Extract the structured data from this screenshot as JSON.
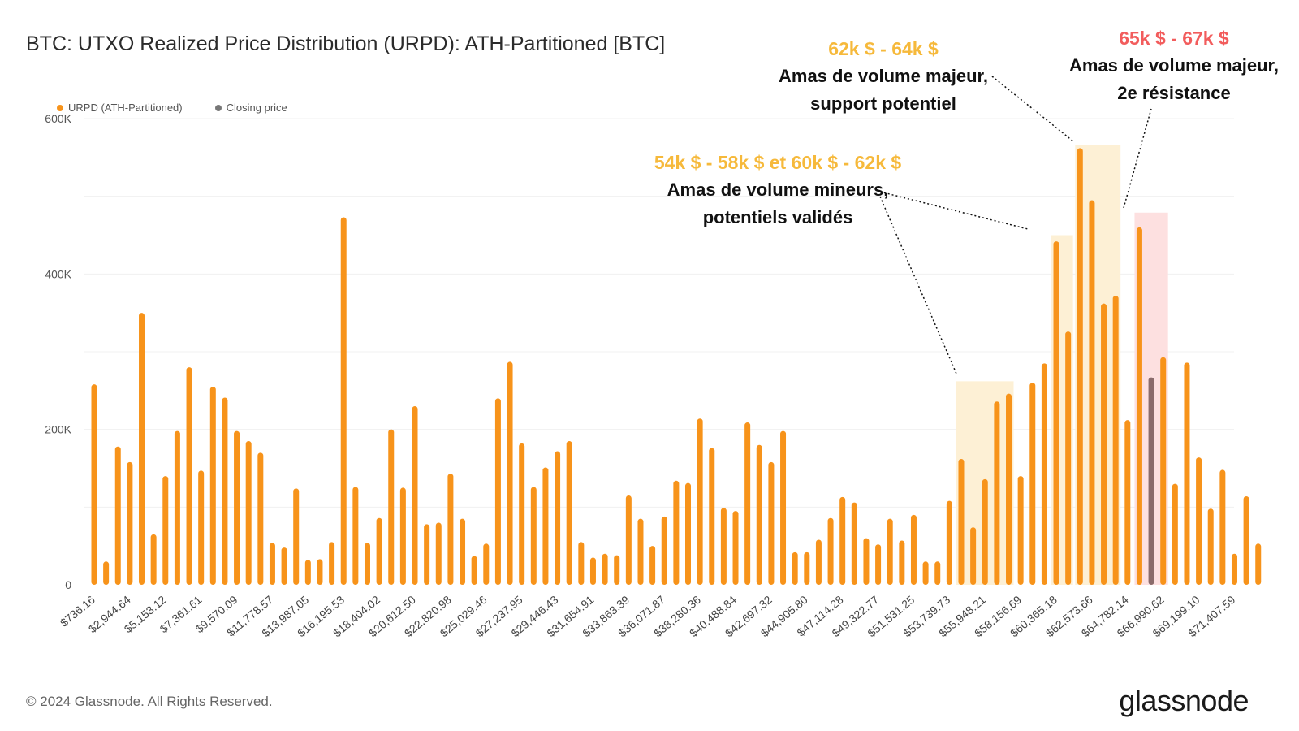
{
  "title": "BTC: UTXO Realized Price Distribution (URPD): ATH-Partitioned [BTC]",
  "legend": {
    "urpd_label": "URPD (ATH-Partitioned)",
    "closing_label": "Closing price"
  },
  "colors": {
    "bar": "#f7931a",
    "closing": "#8b6b6b",
    "orange_annotation": "#f6b93b",
    "red_annotation": "#f25c5c",
    "shade_orange": "#fdf0d5",
    "shade_red": "#fde0e0"
  },
  "annotations": {
    "a1": {
      "range": "62k $ - 64k $",
      "line1": "Amas de volume majeur,",
      "line2": "support potentiel"
    },
    "a2": {
      "range": "65k $ - 67k $",
      "line1": "Amas de volume majeur,",
      "line2": "2e résistance"
    },
    "a3": {
      "range": "54k $ - 58k $ et 60k $ - 62k $",
      "line1": "Amas de volume mineurs,",
      "line2": "potentiels validés"
    }
  },
  "footer": "© 2024 Glassnode. All Rights Reserved.",
  "logo": "glassnode",
  "chart_data": {
    "type": "bar",
    "ylim": [
      0,
      600000
    ],
    "y_ticks": [
      0,
      200000,
      400000,
      600000
    ],
    "y_tick_labels": [
      "0",
      "200K",
      "400K",
      "600K"
    ],
    "grid": true,
    "legend_position": "top-left",
    "closing_index": 89,
    "tick_labels": [
      "$736.16",
      "$2,944.64",
      "$5,153.12",
      "$7,361.61",
      "$9,570.09",
      "$11,778.57",
      "$13,987.05",
      "$16,195.53",
      "$18,404.02",
      "$20,612.50",
      "$22,820.98",
      "$25,029.46",
      "$27,237.95",
      "$29,446.43",
      "$31,654.91",
      "$33,863.39",
      "$36,071.87",
      "$38,280.36",
      "$40,488.84",
      "$42,697.32",
      "$44,905.80",
      "$47,114.28",
      "$49,322.77",
      "$51,531.25",
      "$53,739.73",
      "$55,948.21",
      "$58,156.69",
      "$60,365.18",
      "$62,573.66",
      "$64,782.14",
      "$66,990.62",
      "$69,199.10",
      "$71,407.59"
    ],
    "values": [
      258000,
      30000,
      178000,
      158000,
      350000,
      65000,
      140000,
      198000,
      280000,
      147000,
      255000,
      241000,
      198000,
      185000,
      170000,
      54000,
      48000,
      124000,
      32000,
      33000,
      55000,
      473000,
      126000,
      54000,
      86000,
      200000,
      125000,
      230000,
      78000,
      80000,
      143000,
      85000,
      37000,
      53000,
      240000,
      287000,
      182000,
      126000,
      151000,
      172000,
      185000,
      55000,
      35000,
      40000,
      38000,
      115000,
      85000,
      50000,
      88000,
      134000,
      131000,
      214000,
      176000,
      99000,
      95000,
      209000,
      180000,
      158000,
      198000,
      42000,
      42000,
      58000,
      86000,
      113000,
      106000,
      60000,
      52000,
      85000,
      57000,
      90000,
      30000,
      30000,
      108000,
      162000,
      74000,
      136000,
      236000,
      246000,
      140000,
      260000,
      285000,
      442000,
      326000,
      562000,
      495000,
      362000,
      372000,
      212000,
      460000,
      267000,
      293000,
      130000,
      286000,
      164000,
      98000,
      148000,
      40000,
      114000,
      53000
    ]
  }
}
